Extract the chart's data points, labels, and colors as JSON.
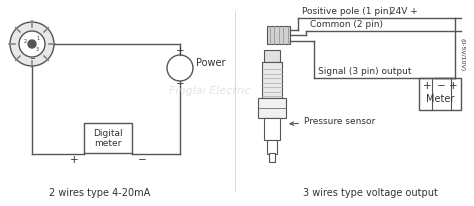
{
  "bg_color": "#ffffff",
  "line_color": "#555555",
  "text_color": "#333333",
  "watermark_color": "#cccccc",
  "watermark_text": "Finglai Electric",
  "left_title": "2 wires type 4-20mA",
  "right_title": "3 wires type voltage output",
  "power_label": "Power",
  "digital_label_1": "Digital",
  "digital_label_2": "meter",
  "positive_pole": "Positive pole (1 pin)",
  "voltage_label": "24V +",
  "common_label": "Common (2 pin)",
  "signal_label": "Signal (3 pin) output",
  "pressure_label": "Pressure sensor",
  "voltage_range": "(0-5V/10V)",
  "meter_label": "Meter"
}
